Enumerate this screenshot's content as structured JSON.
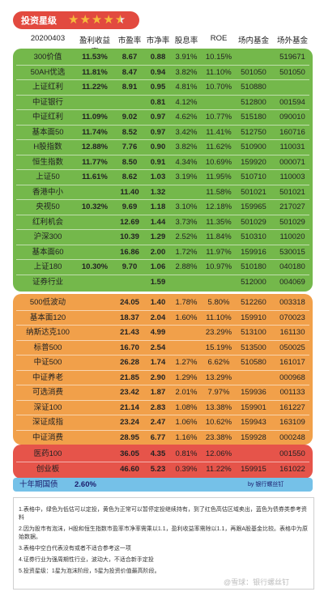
{
  "rating": {
    "label": "投资星级",
    "stars": "★★★★",
    "half_star": "★"
  },
  "header": {
    "date": "20200403",
    "cols": [
      "盈利收益率",
      "市盈率",
      "市净率",
      "股息率",
      "ROE",
      "场内基金",
      "场外基金"
    ]
  },
  "green_rows": [
    {
      "name": "300价值",
      "yield": "11.53%",
      "pe": "8.67",
      "pb": "0.88",
      "div": "3.91%",
      "roe": "10.15%",
      "in": "",
      "out": "519671"
    },
    {
      "name": "50AH优选",
      "yield": "11.81%",
      "pe": "8.47",
      "pb": "0.94",
      "div": "3.82%",
      "roe": "11.10%",
      "in": "501050",
      "out": "501050"
    },
    {
      "name": "上证红利",
      "yield": "11.22%",
      "pe": "8.91",
      "pb": "0.95",
      "div": "4.81%",
      "roe": "10.70%",
      "in": "510880",
      "out": ""
    },
    {
      "name": "中证银行",
      "yield": "",
      "pe": "",
      "pb": "0.81",
      "div": "4.12%",
      "roe": "",
      "in": "512800",
      "out": "001594"
    },
    {
      "name": "中证红利",
      "yield": "11.09%",
      "pe": "9.02",
      "pb": "0.97",
      "div": "4.62%",
      "roe": "10.77%",
      "in": "515180",
      "out": "090010"
    },
    {
      "name": "基本面50",
      "yield": "11.74%",
      "pe": "8.52",
      "pb": "0.97",
      "div": "3.42%",
      "roe": "11.41%",
      "in": "512750",
      "out": "160716"
    },
    {
      "name": "H股指数",
      "yield": "12.88%",
      "pe": "7.76",
      "pb": "0.90",
      "div": "3.82%",
      "roe": "11.62%",
      "in": "510900",
      "out": "110031"
    },
    {
      "name": "恒生指数",
      "yield": "11.77%",
      "pe": "8.50",
      "pb": "0.91",
      "div": "4.34%",
      "roe": "10.69%",
      "in": "159920",
      "out": "000071"
    },
    {
      "name": "上证50",
      "yield": "11.61%",
      "pe": "8.62",
      "pb": "1.03",
      "div": "3.19%",
      "roe": "11.95%",
      "in": "510710",
      "out": "110003"
    },
    {
      "name": "香港中小",
      "yield": "",
      "pe": "11.40",
      "pb": "1.32",
      "div": "",
      "roe": "11.58%",
      "in": "501021",
      "out": "501021"
    },
    {
      "name": "央视50",
      "yield": "10.32%",
      "pe": "9.69",
      "pb": "1.18",
      "div": "3.10%",
      "roe": "12.18%",
      "in": "159965",
      "out": "217027"
    },
    {
      "name": "红利机会",
      "yield": "",
      "pe": "12.69",
      "pb": "1.44",
      "div": "3.73%",
      "roe": "11.35%",
      "in": "501029",
      "out": "501029"
    },
    {
      "name": "沪深300",
      "yield": "",
      "pe": "10.39",
      "pb": "1.29",
      "div": "2.52%",
      "roe": "11.84%",
      "in": "510310",
      "out": "110020"
    },
    {
      "name": "基本面60",
      "yield": "",
      "pe": "16.86",
      "pb": "2.00",
      "div": "1.72%",
      "roe": "11.97%",
      "in": "159916",
      "out": "530015"
    },
    {
      "name": "上证180",
      "yield": "10.30%",
      "pe": "9.70",
      "pb": "1.06",
      "div": "2.88%",
      "roe": "10.97%",
      "in": "510180",
      "out": "040180"
    },
    {
      "name": "证券行业",
      "yield": "",
      "pe": "",
      "pb": "1.59",
      "div": "",
      "roe": "",
      "in": "512000",
      "out": "004069"
    }
  ],
  "orange_rows": [
    {
      "name": "500低波动",
      "yield": "",
      "pe": "24.05",
      "pb": "1.40",
      "div": "1.78%",
      "roe": "5.80%",
      "in": "512260",
      "out": "003318"
    },
    {
      "name": "基本面120",
      "yield": "",
      "pe": "18.37",
      "pb": "2.04",
      "div": "1.60%",
      "roe": "11.10%",
      "in": "159910",
      "out": "070023"
    },
    {
      "name": "纳斯达克100",
      "yield": "",
      "pe": "21.43",
      "pb": "4.99",
      "div": "",
      "roe": "23.29%",
      "in": "513100",
      "out": "161130"
    },
    {
      "name": "标普500",
      "yield": "",
      "pe": "16.70",
      "pb": "2.54",
      "div": "",
      "roe": "15.19%",
      "in": "513500",
      "out": "050025"
    },
    {
      "name": "中证500",
      "yield": "",
      "pe": "26.28",
      "pb": "1.74",
      "div": "1.27%",
      "roe": "6.62%",
      "in": "510580",
      "out": "161017"
    },
    {
      "name": "中证养老",
      "yield": "",
      "pe": "21.85",
      "pb": "2.90",
      "div": "1.29%",
      "roe": "13.29%",
      "in": "",
      "out": "000968"
    },
    {
      "name": "可选消费",
      "yield": "",
      "pe": "23.42",
      "pb": "1.87",
      "div": "2.01%",
      "roe": "7.97%",
      "in": "159936",
      "out": "001133"
    },
    {
      "name": "深证100",
      "yield": "",
      "pe": "21.14",
      "pb": "2.83",
      "div": "1.08%",
      "roe": "13.38%",
      "in": "159901",
      "out": "161227"
    },
    {
      "name": "深证成指",
      "yield": "",
      "pe": "23.24",
      "pb": "2.47",
      "div": "1.06%",
      "roe": "10.62%",
      "in": "159943",
      "out": "163109"
    },
    {
      "name": "中证消费",
      "yield": "",
      "pe": "28.95",
      "pb": "6.77",
      "div": "1.16%",
      "roe": "23.38%",
      "in": "159928",
      "out": "000248"
    }
  ],
  "red_rows": [
    {
      "name": "医药100",
      "yield": "",
      "pe": "36.05",
      "pb": "4.35",
      "div": "0.81%",
      "roe": "12.06%",
      "in": "",
      "out": "001550"
    },
    {
      "name": "创业板",
      "yield": "",
      "pe": "46.60",
      "pb": "5.23",
      "div": "0.39%",
      "roe": "11.22%",
      "in": "159915",
      "out": "161022"
    }
  ],
  "bond": {
    "label": "十年期国债",
    "value": "2.60%",
    "credit": "by 银行螺丝钉"
  },
  "notes": [
    "1.表格中，绿色为低估可以定投，黄色为正常可以暂停定投继续持有，到了红色高估区域卖出，蓝色为债券类参考资料",
    "2.因为股市有泡沫，H股和恒生指数市盈率市净率需乘以1.1，盈利收益率需除以1.1，再跟A股基金比较。表格中为原始数据。",
    "3.表格中空白代表没有或者不适合参考这一项",
    "4.证券行业为强周期性行业，波动大，不适合新手定投",
    "5.投资星级：1星为泡沫阶段，5星为投资价值最高阶段。"
  ],
  "watermark": "@雪球：银行螺丝钉"
}
